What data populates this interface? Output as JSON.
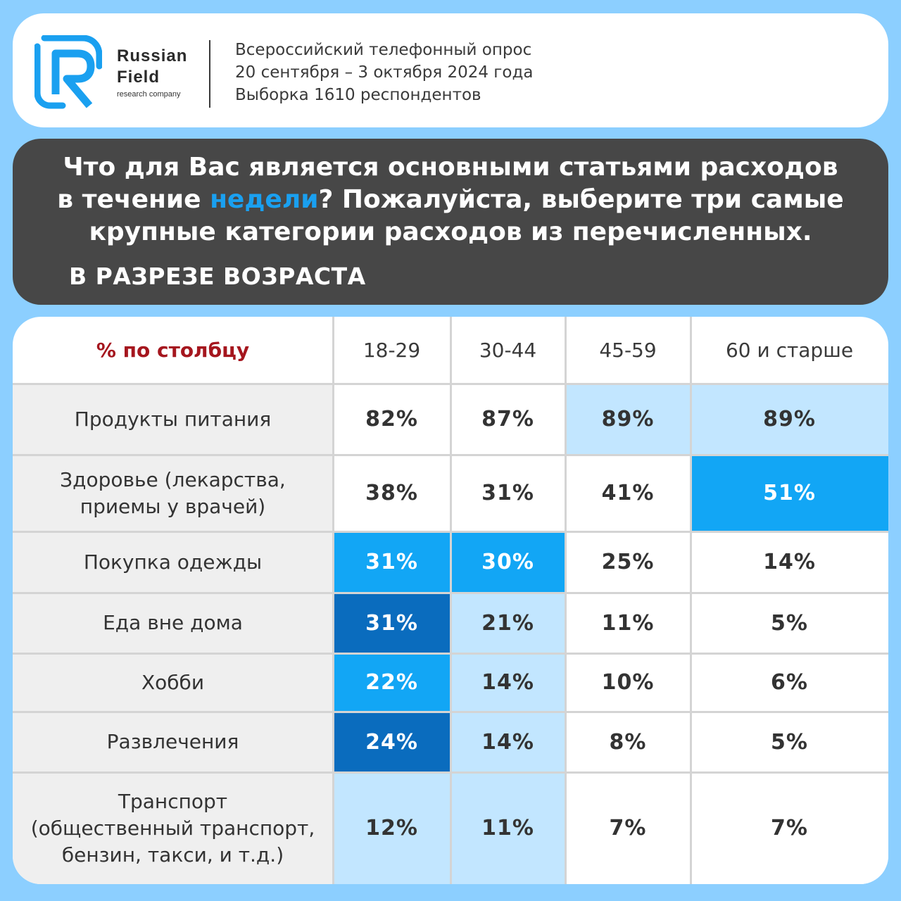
{
  "brand": {
    "line1": "Russian",
    "line2": "Field",
    "line3": "research company",
    "logo_color": "#1aa0f0"
  },
  "survey_info": [
    "Всероссийский телефонный опрос",
    "20 сентября – 3 октября 2024 года",
    "Выборка 1610 респондентов"
  ],
  "question": {
    "line1": "Что для Вас является основными статьями расходов",
    "line2_pre": "в течение ",
    "line2_highlight": "недели",
    "line2_post": "? Пожалуйста, выберите три самые",
    "line3": "крупные категории расходов из перечисленных.",
    "highlight_color": "#1aa0f0"
  },
  "subtitle": "В РАЗРЕЗЕ ВОЗРАСТА",
  "chart_data": {
    "type": "table",
    "corner_label": "% по столбцу",
    "columns": [
      "18-29",
      "30-44",
      "45-59",
      "60 и старше"
    ],
    "rows": [
      {
        "label": [
          "Продукты питания"
        ],
        "values": [
          "82%",
          "87%",
          "89%",
          "89%"
        ],
        "shade": [
          0,
          0,
          1,
          1
        ]
      },
      {
        "label": [
          "Здоровье (лекарства,",
          "приемы у врачей)"
        ],
        "values": [
          "38%",
          "31%",
          "41%",
          "51%"
        ],
        "shade": [
          0,
          0,
          0,
          2
        ]
      },
      {
        "label": [
          "Покупка одежды"
        ],
        "values": [
          "31%",
          "30%",
          "25%",
          "14%"
        ],
        "shade": [
          2,
          2,
          0,
          0
        ]
      },
      {
        "label": [
          "Еда вне дома"
        ],
        "values": [
          "31%",
          "21%",
          "11%",
          "5%"
        ],
        "shade": [
          3,
          1,
          0,
          0
        ]
      },
      {
        "label": [
          "Хобби"
        ],
        "values": [
          "22%",
          "14%",
          "10%",
          "6%"
        ],
        "shade": [
          2,
          1,
          0,
          0
        ]
      },
      {
        "label": [
          "Развлечения"
        ],
        "values": [
          "24%",
          "14%",
          "8%",
          "5%"
        ],
        "shade": [
          3,
          1,
          0,
          0
        ]
      },
      {
        "label": [
          "Транспорт",
          "(общественный транспорт,",
          "бензин, такси, и т.д.)"
        ],
        "values": [
          "12%",
          "11%",
          "7%",
          "7%"
        ],
        "shade": [
          1,
          1,
          0,
          0
        ]
      }
    ],
    "shade_colors": [
      "#ffffff",
      "#c2e6ff",
      "#12a6f5",
      "#0a6cbe"
    ]
  }
}
